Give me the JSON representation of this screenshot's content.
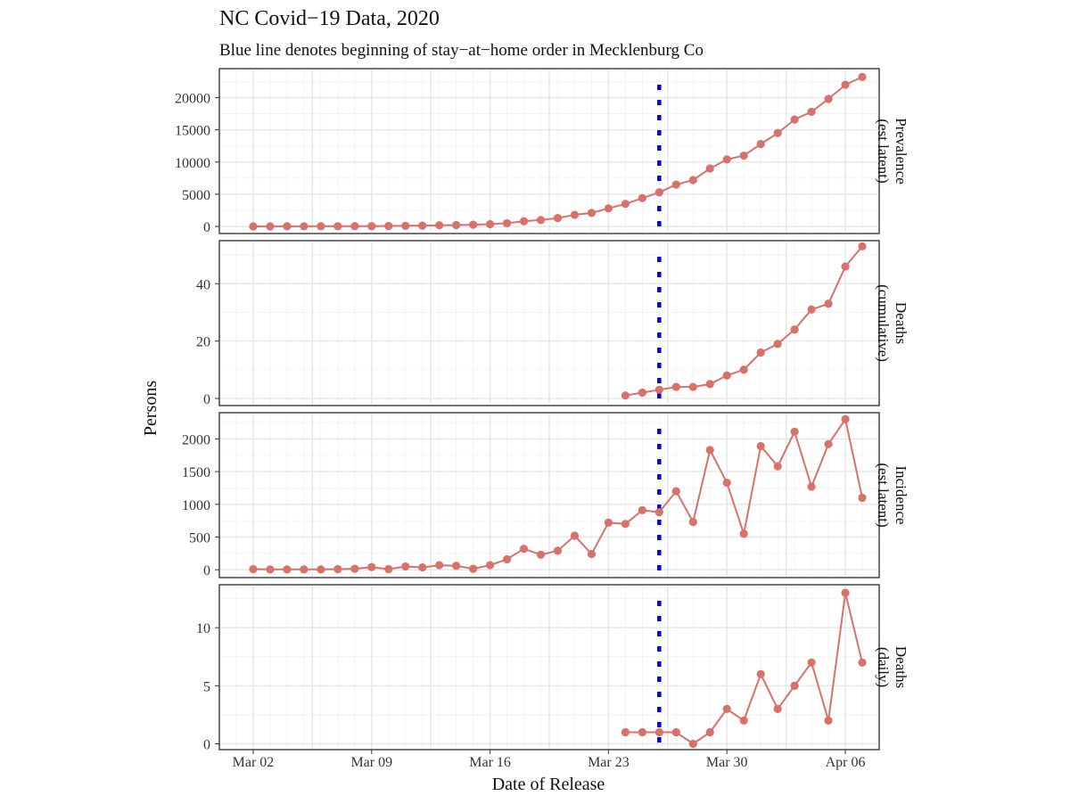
{
  "chart_data": {
    "type": "line",
    "title": "NC Covid−19 Data, 2020",
    "subtitle": "Blue line denotes beginning of stay−at−home order in Mecklenburg Co",
    "xlabel": "Date of Release",
    "ylabel": "Persons",
    "x_tick_labels": [
      "Mar 02",
      "Mar 09",
      "Mar 16",
      "Mar 23",
      "Mar 30",
      "Apr 06"
    ],
    "x_tick_dates": [
      "2020-03-02",
      "2020-03-09",
      "2020-03-16",
      "2020-03-23",
      "2020-03-30",
      "2020-04-06"
    ],
    "x_range": [
      "2020-02-29",
      "2020-04-08"
    ],
    "vertical_line_date": "2020-03-26",
    "vertical_line_color": "#0000ee",
    "series_color": "#d9716b",
    "grid": true,
    "panels": [
      {
        "strip_lines": [
          "Prevalence",
          "(est latent)"
        ],
        "ylim": [
          -1100,
          24500
        ],
        "y_ticks": [
          0,
          5000,
          10000,
          15000,
          20000
        ],
        "points": [
          [
            "2020-03-02",
            10
          ],
          [
            "2020-03-03",
            15
          ],
          [
            "2020-03-04",
            20
          ],
          [
            "2020-03-05",
            25
          ],
          [
            "2020-03-06",
            30
          ],
          [
            "2020-03-07",
            35
          ],
          [
            "2020-03-08",
            40
          ],
          [
            "2020-03-09",
            50
          ],
          [
            "2020-03-10",
            70
          ],
          [
            "2020-03-11",
            100
          ],
          [
            "2020-03-12",
            130
          ],
          [
            "2020-03-13",
            180
          ],
          [
            "2020-03-14",
            220
          ],
          [
            "2020-03-15",
            270
          ],
          [
            "2020-03-16",
            350
          ],
          [
            "2020-03-17",
            500
          ],
          [
            "2020-03-18",
            800
          ],
          [
            "2020-03-19",
            1000
          ],
          [
            "2020-03-20",
            1300
          ],
          [
            "2020-03-21",
            1800
          ],
          [
            "2020-03-22",
            2100
          ],
          [
            "2020-03-23",
            2800
          ],
          [
            "2020-03-24",
            3500
          ],
          [
            "2020-03-25",
            4400
          ],
          [
            "2020-03-26",
            5300
          ],
          [
            "2020-03-27",
            6500
          ],
          [
            "2020-03-28",
            7200
          ],
          [
            "2020-03-29",
            9000
          ],
          [
            "2020-03-30",
            10400
          ],
          [
            "2020-03-31",
            11000
          ],
          [
            "2020-04-01",
            12800
          ],
          [
            "2020-04-02",
            14500
          ],
          [
            "2020-04-03",
            16600
          ],
          [
            "2020-04-04",
            17800
          ],
          [
            "2020-04-05",
            19800
          ],
          [
            "2020-04-06",
            22000
          ],
          [
            "2020-04-07",
            23200
          ]
        ]
      },
      {
        "strip_lines": [
          "Deaths",
          "(cumulative)"
        ],
        "ylim": [
          -2.5,
          55
        ],
        "y_ticks": [
          0,
          20,
          40
        ],
        "points": [
          [
            "2020-03-24",
            1
          ],
          [
            "2020-03-25",
            2
          ],
          [
            "2020-03-26",
            3
          ],
          [
            "2020-03-27",
            4
          ],
          [
            "2020-03-28",
            4
          ],
          [
            "2020-03-29",
            5
          ],
          [
            "2020-03-30",
            8
          ],
          [
            "2020-03-31",
            10
          ],
          [
            "2020-04-01",
            16
          ],
          [
            "2020-04-02",
            19
          ],
          [
            "2020-04-03",
            24
          ],
          [
            "2020-04-04",
            31
          ],
          [
            "2020-04-05",
            33
          ],
          [
            "2020-04-06",
            46
          ],
          [
            "2020-04-07",
            53
          ]
        ]
      },
      {
        "strip_lines": [
          "Incidence",
          "(est latent)"
        ],
        "ylim": [
          -120,
          2400
        ],
        "y_ticks": [
          0,
          500,
          1000,
          1500,
          2000
        ],
        "points": [
          [
            "2020-03-02",
            10
          ],
          [
            "2020-03-03",
            5
          ],
          [
            "2020-03-04",
            5
          ],
          [
            "2020-03-05",
            5
          ],
          [
            "2020-03-06",
            5
          ],
          [
            "2020-03-07",
            10
          ],
          [
            "2020-03-08",
            15
          ],
          [
            "2020-03-09",
            40
          ],
          [
            "2020-03-10",
            10
          ],
          [
            "2020-03-11",
            50
          ],
          [
            "2020-03-12",
            35
          ],
          [
            "2020-03-13",
            70
          ],
          [
            "2020-03-14",
            60
          ],
          [
            "2020-03-15",
            15
          ],
          [
            "2020-03-16",
            70
          ],
          [
            "2020-03-17",
            160
          ],
          [
            "2020-03-18",
            320
          ],
          [
            "2020-03-19",
            230
          ],
          [
            "2020-03-20",
            290
          ],
          [
            "2020-03-21",
            520
          ],
          [
            "2020-03-22",
            240
          ],
          [
            "2020-03-23",
            720
          ],
          [
            "2020-03-24",
            700
          ],
          [
            "2020-03-25",
            910
          ],
          [
            "2020-03-26",
            880
          ],
          [
            "2020-03-27",
            1200
          ],
          [
            "2020-03-28",
            730
          ],
          [
            "2020-03-29",
            1830
          ],
          [
            "2020-03-30",
            1330
          ],
          [
            "2020-03-31",
            550
          ],
          [
            "2020-04-01",
            1890
          ],
          [
            "2020-04-02",
            1580
          ],
          [
            "2020-04-03",
            2110
          ],
          [
            "2020-04-04",
            1270
          ],
          [
            "2020-04-05",
            1920
          ],
          [
            "2020-04-06",
            2300
          ],
          [
            "2020-04-07",
            1100
          ]
        ]
      },
      {
        "strip_lines": [
          "Deaths",
          "(daily)"
        ],
        "ylim": [
          -0.5,
          13.7
        ],
        "y_ticks": [
          0,
          5,
          10
        ],
        "points": [
          [
            "2020-03-24",
            1
          ],
          [
            "2020-03-25",
            1
          ],
          [
            "2020-03-26",
            1
          ],
          [
            "2020-03-27",
            1
          ],
          [
            "2020-03-28",
            0
          ],
          [
            "2020-03-29",
            1
          ],
          [
            "2020-03-30",
            3
          ],
          [
            "2020-03-31",
            2
          ],
          [
            "2020-04-01",
            6
          ],
          [
            "2020-04-02",
            3
          ],
          [
            "2020-04-03",
            5
          ],
          [
            "2020-04-04",
            7
          ],
          [
            "2020-04-05",
            2
          ],
          [
            "2020-04-06",
            13
          ],
          [
            "2020-04-07",
            7
          ]
        ]
      }
    ]
  }
}
